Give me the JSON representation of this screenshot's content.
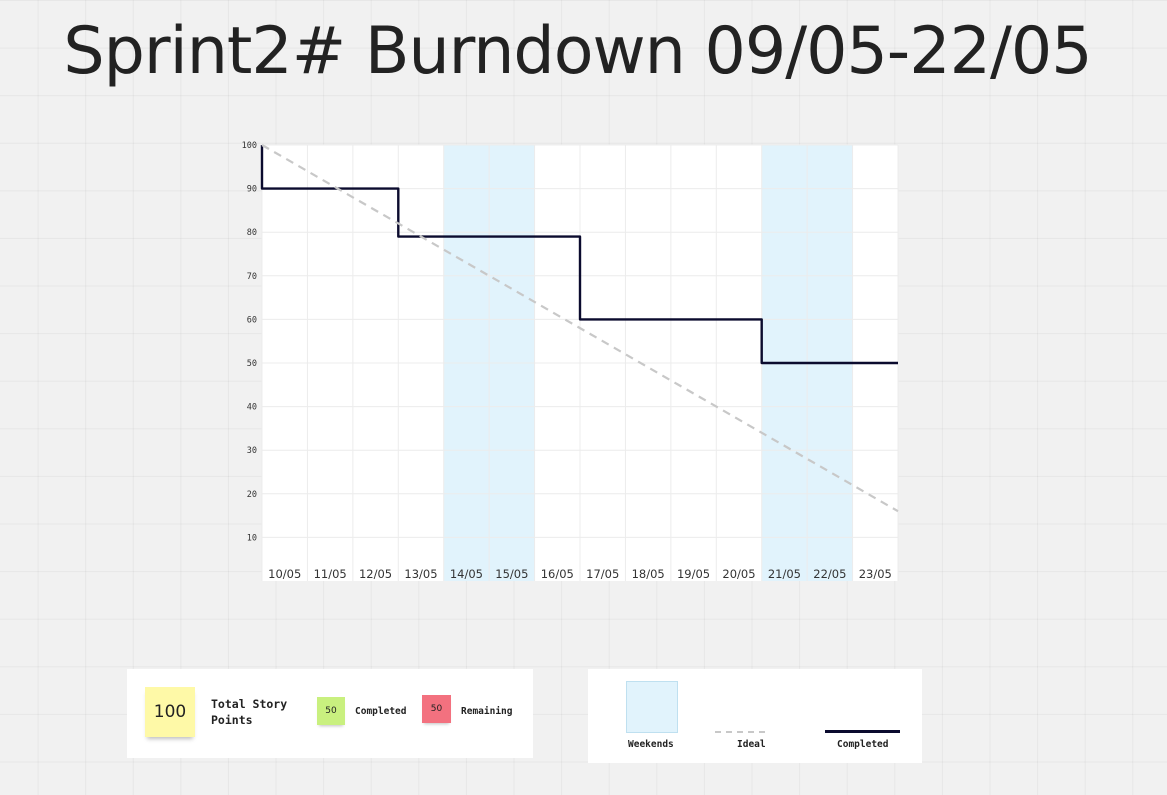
{
  "title": "Sprint2# Burndown 09/05-22/05",
  "chart_data": {
    "type": "line",
    "x": [
      "10/05",
      "11/05",
      "12/05",
      "13/05",
      "14/05",
      "15/05",
      "16/05",
      "17/05",
      "18/05",
      "19/05",
      "20/05",
      "21/05",
      "22/05",
      "23/05"
    ],
    "ylim": [
      0,
      100
    ],
    "yticks": [
      10,
      20,
      30,
      40,
      50,
      60,
      70,
      80,
      90,
      100
    ],
    "weekend_bands": [
      [
        "14/05",
        "15/05"
      ],
      [
        "21/05",
        "22/05"
      ]
    ],
    "series": [
      {
        "name": "Completed",
        "type": "step",
        "color": "#0b0b2e",
        "points": [
          [
            0,
            100
          ],
          [
            0,
            90
          ],
          [
            3,
            90
          ],
          [
            3,
            79
          ],
          [
            7,
            79
          ],
          [
            7,
            60
          ],
          [
            11,
            60
          ],
          [
            11,
            50
          ],
          [
            14,
            50
          ]
        ]
      },
      {
        "name": "Ideal",
        "type": "dashed",
        "color": "#c8c8c8",
        "points": [
          [
            0,
            100
          ],
          [
            14,
            16
          ]
        ]
      }
    ],
    "grid": true,
    "colors": {
      "weekend": "#e1f3fc"
    }
  },
  "summary": {
    "total_value": "100",
    "total_label": "Total Story Points",
    "completed_value": "50",
    "completed_label": "Completed",
    "remaining_value": "50",
    "remaining_label": "Remaining",
    "colors": {
      "total": "#fef9a7",
      "completed": "#c9f07f",
      "remaining": "#f3717f"
    }
  },
  "legend": {
    "weekends": "Weekends",
    "ideal": "Ideal",
    "completed": "Completed"
  }
}
